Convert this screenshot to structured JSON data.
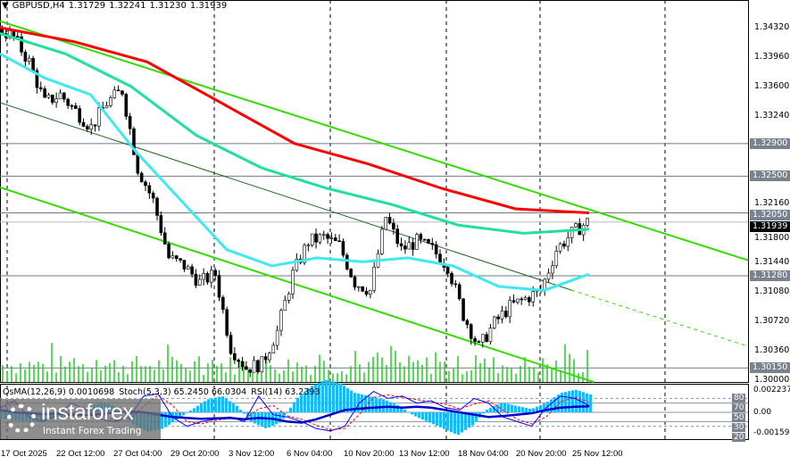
{
  "header": {
    "symbol": "GBPUSD,H4",
    "open": "1.31729",
    "high": "1.32241",
    "low": "1.31230",
    "close": "1.31939"
  },
  "indicator_header": {
    "osma": "OsMA(12,26,9) 0.0010698",
    "stoch": "Stoch(5,3,3) 65.2450 66.0304",
    "rsi": "RSI(14) 63.2393"
  },
  "price_axis": [
    "1.34320",
    "1.33960",
    "1.33600",
    "1.33240",
    "1.32160",
    "1.31800",
    "1.31440",
    "1.31080",
    "1.30720",
    "1.30360",
    "1.30000"
  ],
  "level_tags": [
    "1.32900",
    "1.32500",
    "1.32050",
    "1.31280",
    "1.30150"
  ],
  "current_price": "1.31939",
  "indicator_axis": {
    "max": "0.002237",
    "min": "-0.001595",
    "zero": "0.00",
    "levels": [
      "80",
      "70",
      "50",
      "30",
      "20"
    ]
  },
  "time_axis": [
    "17 Oct 2025",
    "22 Oct 12:00",
    "27 Oct 04:00",
    "29 Oct 20:00",
    "3 Nov 12:00",
    "6 Nov 04:00",
    "10 Nov 20:00",
    "13 Nov 12:00",
    "18 Nov 04:00",
    "20 Nov 20:00",
    "25 Nov 12:00"
  ],
  "logo": {
    "brand": "instaforex",
    "tagline": "Instant Forex Trading"
  },
  "colors": {
    "ma_red": "#ff0000",
    "ma_teal": "#20e0a0",
    "ma_cyan": "#40e8f0",
    "channel": "#33dd00",
    "volume": "#22cc22",
    "osma": "#20b8f0",
    "rsi": "#0000cc",
    "stoch_main": "#0000ff",
    "stoch_signal": "#ff0000"
  },
  "chart_data": {
    "type": "candlestick",
    "symbol": "GBPUSD",
    "timeframe": "H4",
    "ylim": [
      1.3,
      1.345
    ],
    "close_path": [
      1.3432,
      1.342,
      1.339,
      1.334,
      1.335,
      1.333,
      1.331,
      1.334,
      1.3355,
      1.326,
      1.322,
      1.315,
      1.314,
      1.312,
      1.313,
      1.304,
      1.3015,
      1.302,
      1.306,
      1.313,
      1.317,
      1.3175,
      1.3165,
      1.312,
      1.311,
      1.32,
      1.316,
      1.317,
      1.316,
      1.314,
      1.308,
      1.304,
      1.307,
      1.309,
      1.31,
      1.311,
      1.316,
      1.318,
      1.3194
    ],
    "ma_red": [
      1.3432,
      1.3415,
      1.339,
      1.334,
      1.329,
      1.3265,
      1.3235,
      1.321,
      1.3205
    ],
    "ma_teal": [
      1.3425,
      1.34,
      1.336,
      1.33,
      1.326,
      1.3235,
      1.3215,
      1.319,
      1.318,
      1.3185
    ],
    "ma_cyan": [
      1.34,
      1.337,
      1.335,
      1.328,
      1.322,
      1.316,
      1.314,
      1.315,
      1.3145,
      1.315,
      1.314,
      1.3115,
      1.311,
      1.313
    ],
    "horizontal_levels": [
      1.329,
      1.325,
      1.3205,
      1.3128,
      1.3015
    ],
    "stoch": [
      60,
      75,
      40,
      30,
      45,
      70,
      55,
      35,
      30,
      40,
      85,
      90,
      40,
      20,
      30,
      35,
      40,
      30,
      85,
      45,
      40,
      30,
      15,
      10,
      20,
      70,
      95,
      80,
      85,
      70,
      75,
      60,
      55,
      80,
      70,
      40,
      30,
      20,
      60,
      85,
      80,
      65
    ],
    "rsi": [
      55,
      50,
      48,
      46,
      47,
      45,
      44,
      46,
      50,
      52,
      50,
      45,
      40,
      38,
      36,
      37,
      38,
      35,
      38,
      36,
      30,
      28,
      35,
      45,
      55,
      58,
      60,
      62,
      60,
      62,
      60,
      55,
      50,
      45,
      40,
      42,
      45,
      48,
      55,
      60,
      62,
      63
    ],
    "osma": [
      -0.0004,
      -0.0005,
      -0.0006,
      -0.0005,
      -0.0003,
      -0.0002,
      0.0004,
      0.0006,
      0.0003,
      -0.0008,
      -0.0012,
      -0.001,
      -0.0004,
      0.0002,
      0.0008,
      0.001,
      0.0004,
      -0.0006,
      -0.001,
      -0.0006,
      0.0008,
      0.0016,
      0.002,
      0.0018,
      0.0012,
      0.001,
      0.0008,
      0.0004,
      -0.0002,
      -0.0006,
      -0.001,
      -0.0014,
      -0.0008,
      0.0002,
      0.0006,
      0.0004,
      0.0002,
      0.0006,
      0.0012,
      0.0014,
      0.0011
    ]
  }
}
